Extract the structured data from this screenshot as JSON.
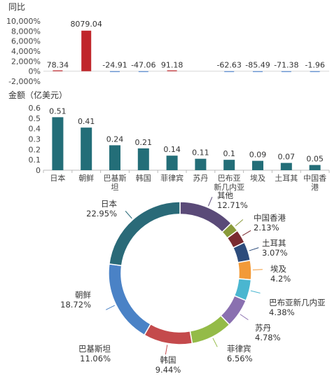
{
  "chart_data": [
    {
      "type": "bar",
      "ylabel": "同比",
      "yticks": [
        "10,000%",
        "8,000%",
        "6,000%",
        "4,000%",
        "2,000%",
        "0%",
        "-2,000%"
      ],
      "ylim": [
        -2000,
        10000
      ],
      "categories": [
        "日本",
        "朝鲜",
        "巴基斯坦",
        "韩国",
        "菲律宾",
        "苏丹",
        "巴布亚新几内亚",
        "埃及",
        "土耳其",
        "中国香港"
      ],
      "values": [
        78.34,
        8079.04,
        -24.91,
        -47.06,
        91.18,
        null,
        -62.63,
        -85.49,
        -71.38,
        -1.96
      ],
      "labels": [
        "78.34",
        "8079.04",
        "-24.91",
        "-47.06",
        "91.18",
        "",
        "-62.63",
        "-85.49",
        "-71.38",
        "-1.96"
      ],
      "colors": {
        "positive": "#c0262b",
        "negative": "#5b8fd6"
      }
    },
    {
      "type": "bar",
      "ylabel": "金额（亿美元）",
      "yticks": [
        "0.6",
        "0.5",
        "0.4",
        "0.3",
        "0.2",
        "0.1",
        "0"
      ],
      "ylim": [
        0,
        0.6
      ],
      "categories": [
        "日本",
        "朝鲜",
        "巴基斯坦",
        "韩国",
        "菲律宾",
        "苏丹",
        "巴布亚新几内亚",
        "埃及",
        "土耳其",
        "中国香港"
      ],
      "category_lines": [
        [
          "日本"
        ],
        [
          "朝鲜"
        ],
        [
          "巴基斯",
          "坦"
        ],
        [
          "韩国"
        ],
        [
          "菲律宾"
        ],
        [
          "苏丹"
        ],
        [
          "巴布亚",
          "新几内亚"
        ],
        [
          "埃及"
        ],
        [
          "土耳其"
        ],
        [
          "中国香",
          "港"
        ]
      ],
      "values": [
        0.51,
        0.41,
        0.24,
        0.21,
        0.14,
        0.11,
        0.1,
        0.09,
        0.07,
        0.05
      ],
      "labels": [
        "0.51",
        "0.41",
        "0.24",
        "0.21",
        "0.14",
        "0.11",
        "0.1",
        "0.09",
        "0.07",
        "0.05"
      ],
      "color": "#236e78"
    },
    {
      "type": "pie",
      "variant": "donut",
      "slices": [
        {
          "name": "其他",
          "pct_label": "12.71%",
          "value": 12.71,
          "color": "#5a4a78"
        },
        {
          "name": "中国香港",
          "pct_label": "2.13%",
          "value": 2.13,
          "color": "#8a9a3a"
        },
        {
          "name": "土耳其",
          "pct_label": "3.07%",
          "value": 3.07,
          "color": "#7a2a30"
        },
        {
          "name": "埃及",
          "pct_label": "4.2%",
          "value": 4.2,
          "color": "#2d4c7c"
        },
        {
          "name": "巴布亚新几内亚",
          "pct_label": "4.38%",
          "value": 4.38,
          "color": "#f29a38"
        },
        {
          "name": "苏丹",
          "pct_label": "4.78%",
          "value": 4.78,
          "color": "#4ab6d0"
        },
        {
          "name": "菲律宾",
          "pct_label": "6.56%",
          "value": 6.56,
          "color": "#8a70b0"
        },
        {
          "name": "韩国",
          "pct_label": "9.44%",
          "value": 9.44,
          "color": "#94bb48"
        },
        {
          "name": "巴基斯坦",
          "pct_label": "11.06%",
          "value": 11.06,
          "color": "#c44a4c"
        },
        {
          "name": "朝鲜",
          "pct_label": "18.72%",
          "value": 18.72,
          "color": "#4a82c6"
        },
        {
          "name": "日本",
          "pct_label": "22.95%",
          "value": 22.95,
          "color": "#2a6a78"
        }
      ]
    }
  ]
}
